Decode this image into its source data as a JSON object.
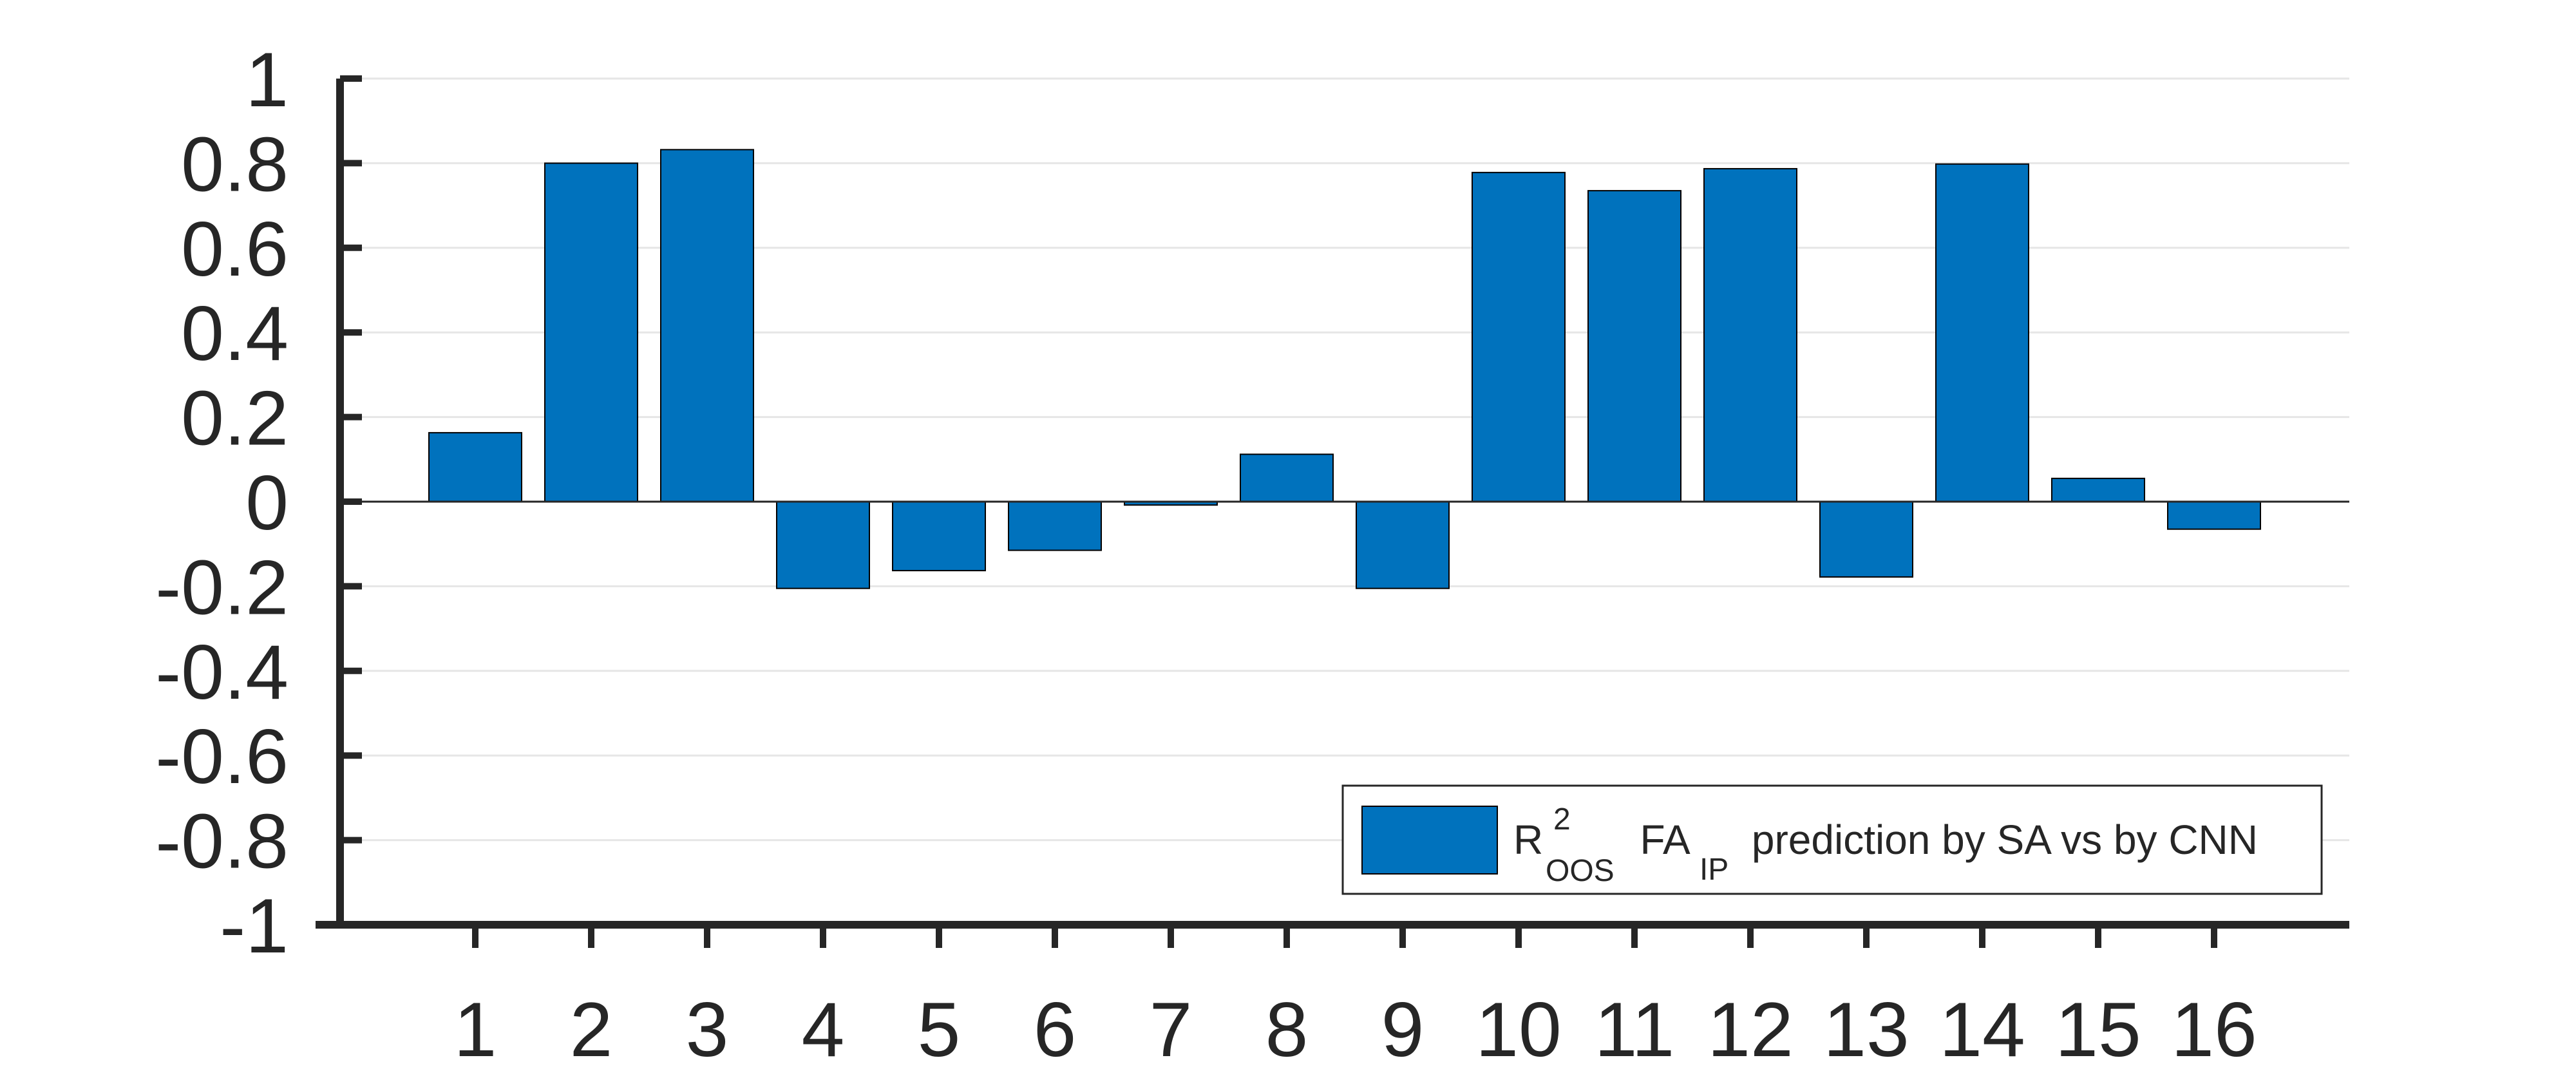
{
  "chart_data": {
    "type": "bar",
    "categories": [
      "1",
      "2",
      "3",
      "4",
      "5",
      "6",
      "7",
      "8",
      "9",
      "10",
      "11",
      "12",
      "13",
      "14",
      "15",
      "16"
    ],
    "series": [
      {
        "values": [
          0.163,
          0.8,
          0.832,
          -0.205,
          -0.163,
          -0.115,
          -0.008,
          0.112,
          -0.205,
          0.778,
          0.735,
          0.787,
          -0.178,
          0.798,
          0.055,
          -0.065
        ]
      }
    ],
    "ylim": [
      -1,
      1
    ],
    "yticks": [
      "-1",
      "-0.8",
      "-0.6",
      "-0.4",
      "-0.2",
      "0",
      "0.2",
      "0.4",
      "0.6",
      "0.8",
      "1"
    ],
    "grid": true,
    "legend": {
      "placement": "bottom-right",
      "r_label": "R",
      "r_superscript": "2",
      "r_subscript": "OOS",
      "fa_label": "FA",
      "fa_subscript": "IP",
      "rest": " prediction by SA vs by CNN"
    },
    "colors": {
      "bar": "#0072bd",
      "bar_edge": "#000000",
      "axis": "#262626",
      "grid": "#e6e6e6"
    }
  }
}
